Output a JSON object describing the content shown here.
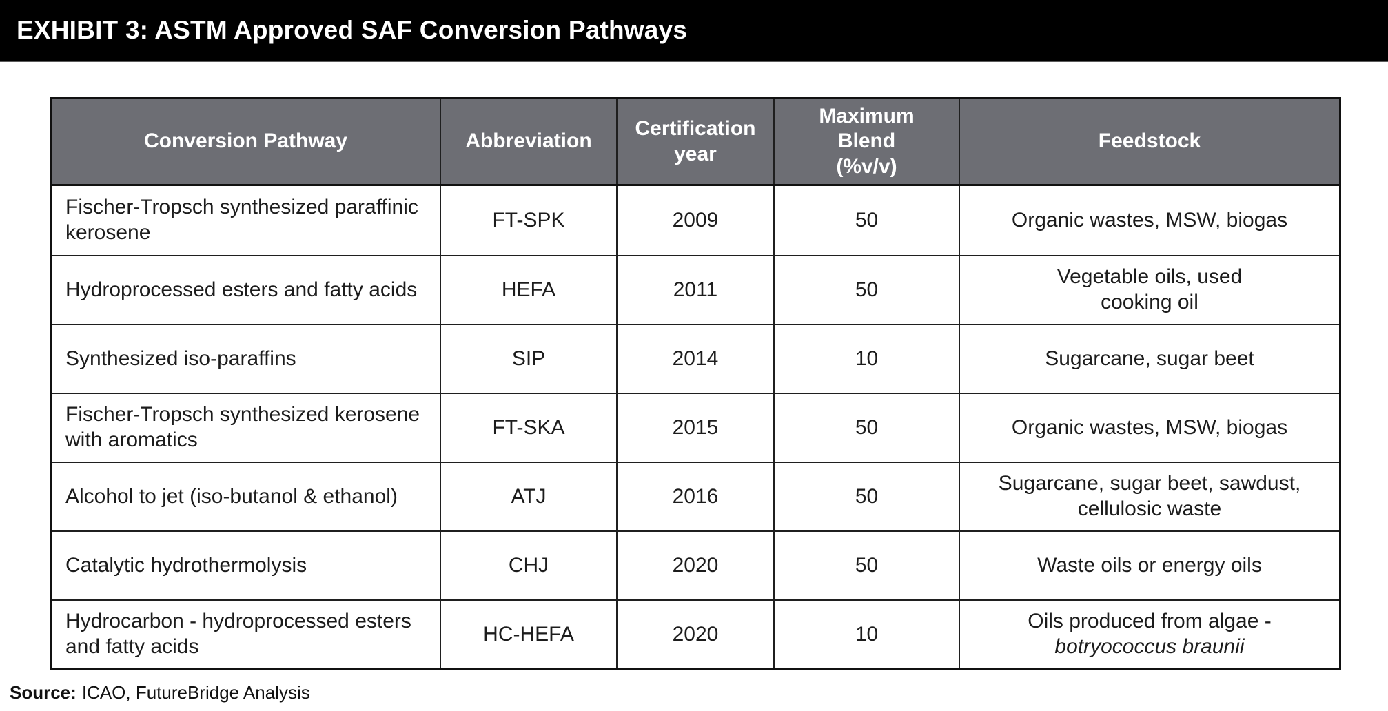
{
  "title_bar": {
    "text": "EXHIBIT 3: ASTM Approved SAF Conversion Pathways"
  },
  "colors": {
    "title_bar_bg": "#000000",
    "title_text": "#ffffff",
    "header_bg": "#6d6e74",
    "header_text": "#ffffff",
    "body_text": "#1c1c1c",
    "border": "#1f1f1f"
  },
  "table": {
    "columns": [
      {
        "label": "Conversion Pathway"
      },
      {
        "label": "Abbreviation"
      },
      {
        "label": "Certification\nyear"
      },
      {
        "label": "Maximum\nBlend\n(%v/v)"
      },
      {
        "label": "Feedstock"
      }
    ],
    "rows": [
      {
        "pathway": "Fischer-Tropsch synthesized paraffinic kerosene",
        "abbreviation": "FT-SPK",
        "year": "2009",
        "max_blend": "50",
        "feedstock": "Organic wastes, MSW, biogas"
      },
      {
        "pathway": "Hydroprocessed esters and fatty acids",
        "abbreviation": "HEFA",
        "year": "2011",
        "max_blend": "50",
        "feedstock": "Vegetable oils, used\ncooking oil"
      },
      {
        "pathway": "Synthesized iso-paraffins",
        "abbreviation": "SIP",
        "year": "2014",
        "max_blend": "10",
        "feedstock": "Sugarcane, sugar beet"
      },
      {
        "pathway": "Fischer-Tropsch synthesized kerosene with aromatics",
        "abbreviation": "FT-SKA",
        "year": "2015",
        "max_blend": "50",
        "feedstock": "Organic wastes, MSW, biogas"
      },
      {
        "pathway": "Alcohol to jet (iso-butanol & ethanol)",
        "abbreviation": "ATJ",
        "year": "2016",
        "max_blend": "50",
        "feedstock": "Sugarcane, sugar beet, sawdust,\ncellulosic waste"
      },
      {
        "pathway": "Catalytic hydrothermolysis",
        "abbreviation": "CHJ",
        "year": "2020",
        "max_blend": "50",
        "feedstock": "Waste oils or energy oils"
      },
      {
        "pathway": "Hydrocarbon - hydroprocessed esters and fatty acids",
        "abbreviation": "HC-HEFA",
        "year": "2020",
        "max_blend": "10",
        "feedstock": "Oils produced from algae -",
        "feedstock_italic": "botryococcus braunii"
      }
    ]
  },
  "footer": {
    "source_label": "Source:",
    "source_text": "ICAO, FutureBridge Analysis"
  }
}
